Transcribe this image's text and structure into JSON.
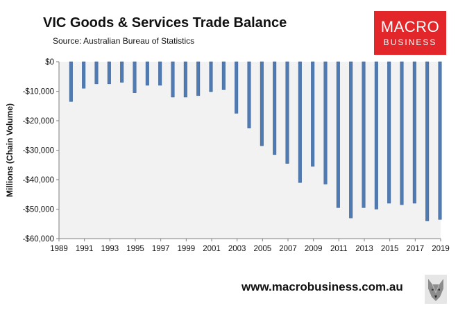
{
  "header": {
    "title": "VIC Goods & Services Trade Balance",
    "subtitle": "Source:  Australian Bureau of Statistics"
  },
  "logo": {
    "top": "MACRO",
    "bottom": "BUSINESS"
  },
  "footer": {
    "website": "www.macrobusiness.com.au",
    "mascot_icon": "wolf-icon"
  },
  "colors": {
    "bar": "#4f7ab2",
    "plot_bg": "#f2f2f2",
    "logo_bg": "#e3262a"
  },
  "chart_data": {
    "type": "bar",
    "title": "VIC Goods & Services Trade Balance",
    "subtitle": "Source:  Australian Bureau of Statistics",
    "ylabel": "Millions (Chain Volume)",
    "xlabel": "",
    "ylim": [
      -60000,
      0
    ],
    "y_ticks": [
      0,
      -10000,
      -20000,
      -30000,
      -40000,
      -50000,
      -60000
    ],
    "y_tick_labels": [
      "$0",
      "-$10,000",
      "-$20,000",
      "-$30,000",
      "-$40,000",
      "-$50,000",
      "-$60,000"
    ],
    "x_tick_labels": [
      "1989",
      "1991",
      "1993",
      "1995",
      "1997",
      "1999",
      "2001",
      "2003",
      "2005",
      "2007",
      "2009",
      "2011",
      "2013",
      "2015",
      "2017",
      "2019"
    ],
    "grid": false,
    "legend": "none",
    "categories": [
      1990,
      1991,
      1992,
      1993,
      1994,
      1995,
      1996,
      1997,
      1998,
      1999,
      2000,
      2001,
      2002,
      2003,
      2004,
      2005,
      2006,
      2007,
      2008,
      2009,
      2010,
      2011,
      2012,
      2013,
      2014,
      2015,
      2016,
      2017,
      2018,
      2019
    ],
    "values": [
      -13500,
      -9000,
      -7500,
      -7500,
      -7000,
      -10500,
      -8000,
      -8000,
      -12000,
      -12000,
      -11500,
      -10200,
      -9500,
      -17500,
      -22500,
      -28500,
      -31500,
      -34500,
      -41000,
      -35500,
      -41500,
      -49500,
      -53000,
      -49500,
      -50000,
      -48000,
      -48500,
      -48000,
      -54000,
      -53500
    ]
  }
}
